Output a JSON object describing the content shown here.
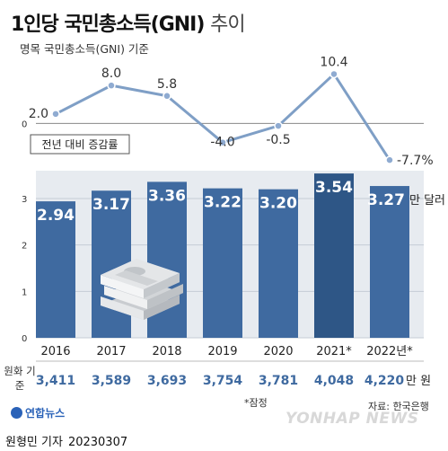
{
  "header": {
    "title": "1인당 국민총소득(GNI)",
    "title_suffix": "추이",
    "subtitle": "명목 국민총소득(GNI) 기준"
  },
  "chart_data": [
    {
      "type": "line",
      "title": "",
      "legend_label": "전년 대비 증감률",
      "x": [
        "2016",
        "2017",
        "2018",
        "2019",
        "2020",
        "2021*",
        "2022년*"
      ],
      "series": [
        {
          "values": [
            2.0,
            8.0,
            5.8,
            -4.0,
            -0.5,
            10.4,
            -7.7
          ],
          "labels": [
            "2.0",
            "8.0",
            "5.8",
            "-4.0",
            "-0.5",
            "10.4",
            "-7.7%"
          ]
        }
      ],
      "yticks": [
        0
      ],
      "ytick_labels": [
        "0"
      ],
      "ylim": [
        -9,
        12
      ],
      "grid": false,
      "line_color": "#7f9fc6",
      "point_color": "#8fabd1"
    },
    {
      "type": "bar",
      "categories": [
        "2016",
        "2017",
        "2018",
        "2019",
        "2020",
        "2021*",
        "2022년*"
      ],
      "values": [
        2.94,
        3.17,
        3.36,
        3.22,
        3.2,
        3.54,
        3.27
      ],
      "value_labels": [
        "2.94",
        "3.17",
        "3.36",
        "3.22",
        "3.20",
        "3.54",
        "3.27"
      ],
      "unit_label": "만 달러",
      "yticks": [
        0,
        1,
        2,
        3
      ],
      "ytick_labels": [
        "0",
        "1",
        "2",
        "3"
      ],
      "ylim": [
        0,
        3.6
      ],
      "grid": true,
      "bar_color": "#3f6aa0",
      "highlight_bar_color": "#2e5686",
      "label_color": "#ffffff"
    }
  ],
  "won_table": {
    "row_label": "원화 기준",
    "values": [
      "3,411",
      "3,589",
      "3,693",
      "3,754",
      "3,781",
      "4,048",
      "4,220"
    ],
    "unit": "만 원",
    "text_color": "#3f6aa0"
  },
  "footer": {
    "note": "*잠정",
    "source": "자료: 한국은행",
    "logo_text": "연합뉴스",
    "watermark": "YONHAP NEWS",
    "credit_name": "원형민 기자",
    "credit_date": "20230307"
  },
  "colors": {
    "panel_bg": "#e7ebf0",
    "axis": "#333333"
  }
}
